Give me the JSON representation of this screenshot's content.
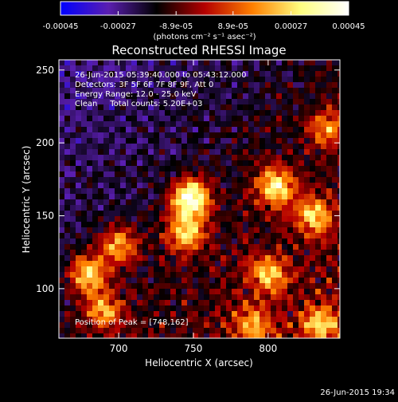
{
  "chart_data": {
    "type": "heatmap",
    "title": "Reconstructed RHESSI Image",
    "xlabel": "Heliocentric X (arcsec)",
    "ylabel": "Heliocentric Y (arcsec)",
    "xlim": [
      660,
      848
    ],
    "ylim": [
      66,
      257
    ],
    "x_ticks": [
      700,
      750,
      800
    ],
    "y_ticks": [
      100,
      150,
      200,
      250
    ],
    "colorbar": {
      "label": "(photons cm⁻² s⁻¹ asec⁻²)",
      "range": [
        -0.00045,
        0.00045
      ],
      "tick_values": [
        -0.00045,
        -0.00027,
        -8.9e-05,
        8.9e-05,
        0.00027,
        0.00045
      ],
      "tick_labels": [
        "-0.00045",
        "-0.00027",
        "-8.9e-05",
        "8.9e-05",
        "0.00027",
        "0.00045"
      ],
      "colors": [
        "#0000ff",
        "#5a1eb0",
        "#000000",
        "#b40000",
        "#ff8000",
        "#ffff80",
        "#ffffff"
      ]
    },
    "annotations": [
      "26-Jun-2015 05:39:40.000 to 05:43:12.000",
      "Detectors: 3F 5F 6F 7F 8F 9F, Att 0",
      "Energy Range: 12.0 - 25.0 keV",
      "Clean     Total counts: 5.20E+03"
    ],
    "peak_label": "Position of Peak = [748,162]",
    "peak": [
      748,
      162
    ],
    "sources": [
      {
        "x": 748,
        "y": 162,
        "amplitude": 1.0
      },
      {
        "x": 745,
        "y": 138,
        "amplitude": 0.7
      },
      {
        "x": 805,
        "y": 170,
        "amplitude": 0.75
      },
      {
        "x": 830,
        "y": 150,
        "amplitude": 0.65
      },
      {
        "x": 800,
        "y": 110,
        "amplitude": 0.6
      },
      {
        "x": 680,
        "y": 110,
        "amplitude": 0.75
      },
      {
        "x": 700,
        "y": 130,
        "amplitude": 0.6
      },
      {
        "x": 690,
        "y": 85,
        "amplitude": 0.55
      },
      {
        "x": 790,
        "y": 75,
        "amplitude": 0.5
      },
      {
        "x": 835,
        "y": 75,
        "amplitude": 0.55
      },
      {
        "x": 840,
        "y": 210,
        "amplitude": 0.5
      }
    ]
  },
  "timestamp": "26-Jun-2015 19:34"
}
